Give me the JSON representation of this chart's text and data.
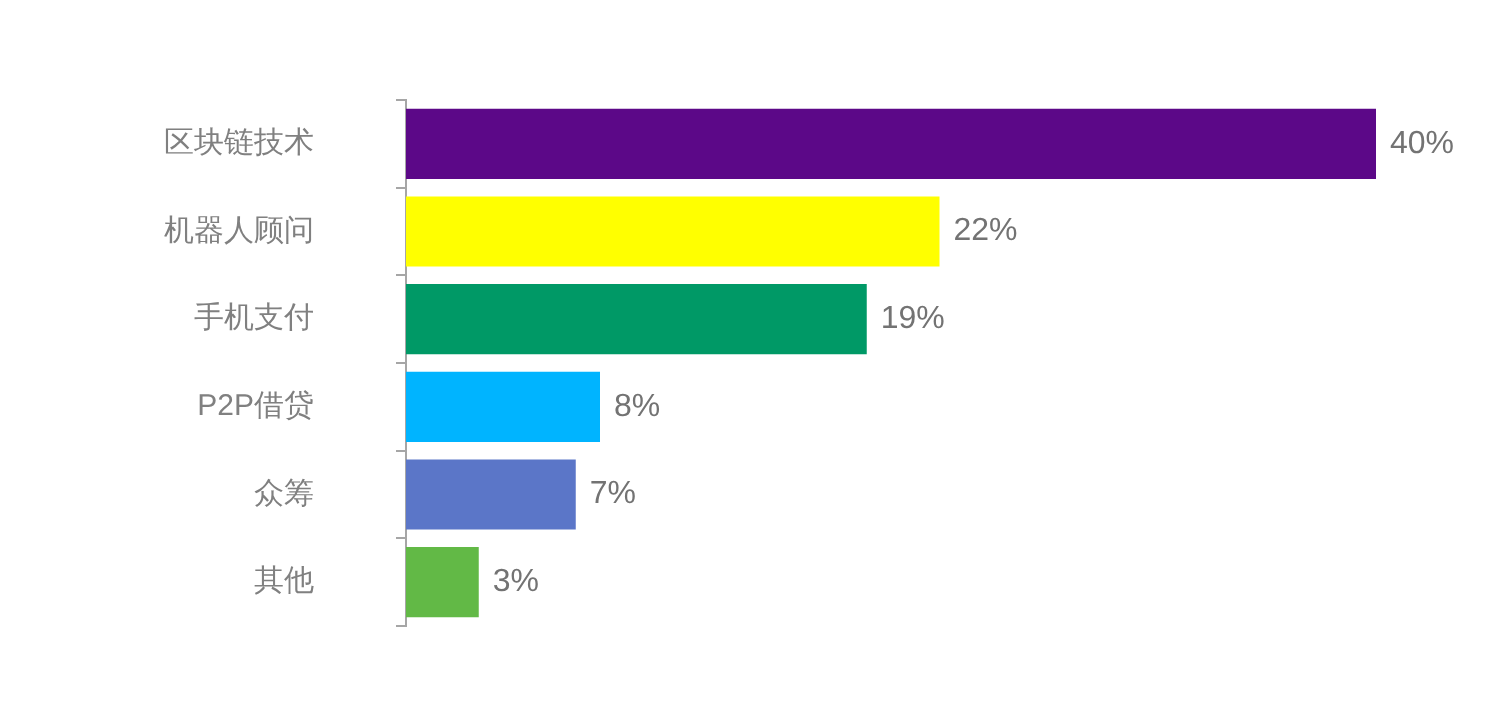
{
  "chart_data": {
    "type": "bar",
    "orientation": "horizontal",
    "categories": [
      "区块链技术",
      "机器人顾问",
      "手机支付",
      "P2P借贷",
      "众筹",
      "其他"
    ],
    "values": [
      40,
      22,
      19,
      8,
      7,
      3
    ],
    "colors": [
      "#5c0888",
      "#ffff00",
      "#009966",
      "#00b4ff",
      "#5b76c8",
      "#62b946"
    ],
    "value_labels": [
      "40%",
      "22%",
      "19%",
      "8%",
      "7%",
      "3%"
    ]
  }
}
